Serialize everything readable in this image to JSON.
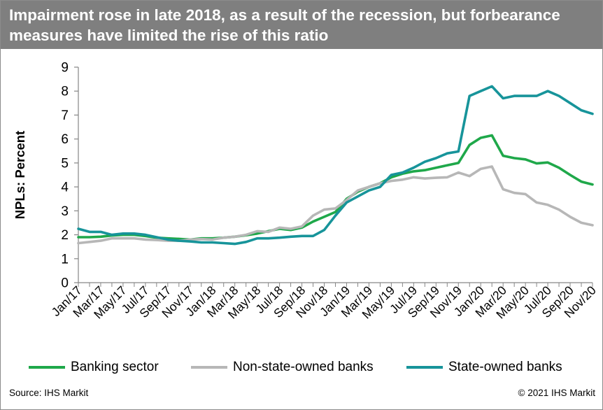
{
  "header": {
    "title": "Impairment rose in late 2018, as a result of the recession, but forbearance measures have limited the rise of this ratio"
  },
  "footer": {
    "source": "Source: IHS Markit",
    "copyright": "© 2021 IHS Markit"
  },
  "chart_data": {
    "type": "line",
    "title": "",
    "xlabel": "",
    "ylabel": "NPLs: Percent",
    "ylim": [
      0,
      9
    ],
    "yticks": [
      0,
      1,
      2,
      3,
      4,
      5,
      6,
      7,
      8,
      9
    ],
    "grid": false,
    "legend": "bottom",
    "x": [
      "Jan/17",
      "Feb/17",
      "Mar/17",
      "Apr/17",
      "May/17",
      "Jun/17",
      "Jul/17",
      "Aug/17",
      "Sep/17",
      "Oct/17",
      "Nov/17",
      "Dec/17",
      "Jan/18",
      "Feb/18",
      "Mar/18",
      "Apr/18",
      "May/18",
      "Jun/18",
      "Jul/18",
      "Aug/18",
      "Sep/18",
      "Oct/18",
      "Nov/18",
      "Dec/18",
      "Jan/19",
      "Feb/19",
      "Mar/19",
      "Apr/19",
      "May/19",
      "Jun/19",
      "Jul/19",
      "Aug/19",
      "Sep/19",
      "Oct/19",
      "Nov/19",
      "Dec/19",
      "Jan/20",
      "Feb/20",
      "Mar/20",
      "Apr/20",
      "May/20",
      "Jun/20",
      "Jul/20",
      "Aug/20",
      "Sep/20",
      "Oct/20",
      "Nov/20"
    ],
    "x_tick_labels": [
      "Jan/17",
      "Mar/17",
      "May/17",
      "Jul/17",
      "Sep/17",
      "Nov/17",
      "Jan/18",
      "Mar/18",
      "May/18",
      "Jul/18",
      "Sep/18",
      "Nov/18",
      "Jan/19",
      "Mar/19",
      "May/19",
      "Jul/19",
      "Sep/19",
      "Nov/19",
      "Jan/20",
      "Mar/20",
      "May/20",
      "Jul/20",
      "Sep/20",
      "Nov/20"
    ],
    "series": [
      {
        "name": "Banking sector",
        "color": "#1fa84a",
        "values": [
          1.9,
          1.9,
          1.92,
          1.97,
          2.0,
          2.0,
          1.95,
          1.88,
          1.85,
          1.83,
          1.8,
          1.85,
          1.85,
          1.88,
          1.92,
          1.98,
          2.05,
          2.15,
          2.25,
          2.2,
          2.3,
          2.55,
          2.75,
          2.95,
          3.5,
          3.8,
          4.0,
          4.15,
          4.4,
          4.55,
          4.65,
          4.7,
          4.8,
          4.9,
          5.0,
          5.75,
          6.05,
          6.15,
          5.3,
          5.2,
          5.15,
          4.98,
          5.02,
          4.8,
          4.5,
          4.22,
          4.1
        ]
      },
      {
        "name": "Non-state-owned banks",
        "color": "#b7b7b7",
        "values": [
          1.65,
          1.7,
          1.75,
          1.85,
          1.85,
          1.85,
          1.8,
          1.78,
          1.75,
          1.75,
          1.8,
          1.82,
          1.8,
          1.88,
          1.92,
          2.0,
          2.15,
          2.12,
          2.3,
          2.25,
          2.35,
          2.8,
          3.05,
          3.1,
          3.45,
          3.85,
          4.0,
          4.15,
          4.25,
          4.3,
          4.4,
          4.35,
          4.38,
          4.4,
          4.6,
          4.45,
          4.75,
          4.85,
          3.9,
          3.75,
          3.7,
          3.35,
          3.25,
          3.05,
          2.75,
          2.5,
          2.4
        ]
      },
      {
        "name": "State-owned banks",
        "color": "#17949a",
        "values": [
          2.25,
          2.12,
          2.12,
          2.0,
          2.05,
          2.05,
          2.0,
          1.9,
          1.8,
          1.75,
          1.72,
          1.68,
          1.68,
          1.65,
          1.62,
          1.7,
          1.85,
          1.85,
          1.88,
          1.92,
          1.95,
          1.95,
          2.2,
          2.8,
          3.35,
          3.6,
          3.85,
          4.0,
          4.5,
          4.6,
          4.8,
          5.05,
          5.2,
          5.4,
          5.48,
          7.8,
          8.0,
          8.2,
          7.7,
          7.8,
          7.8,
          7.8,
          8.0,
          7.8,
          7.5,
          7.2,
          7.05
        ]
      }
    ]
  }
}
